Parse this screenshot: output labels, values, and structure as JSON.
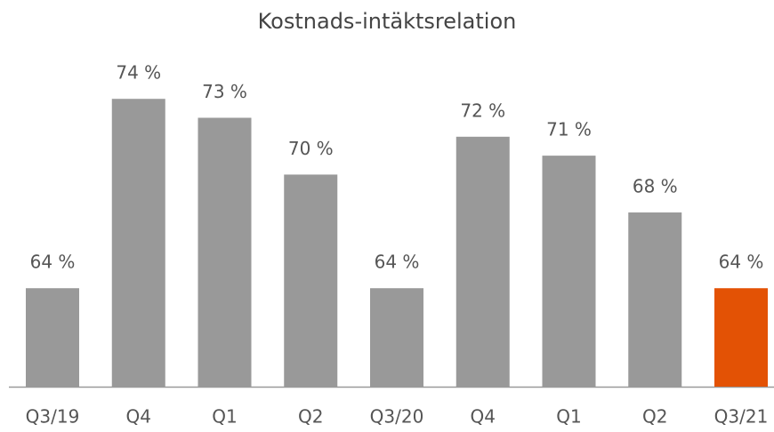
{
  "chart_data": {
    "type": "bar",
    "title": "Kostnads-intäktsrelation",
    "categories": [
      "Q3/19",
      "Q4",
      "Q1",
      "Q2",
      "Q3/20",
      "Q4",
      "Q1",
      "Q2",
      "Q3/21"
    ],
    "values": [
      64,
      74,
      73,
      70,
      64,
      72,
      71,
      68,
      64
    ],
    "value_labels": [
      "64 %",
      "74 %",
      "73 %",
      "70 %",
      "64 %",
      "72 %",
      "71 %",
      "68 %",
      "64 %"
    ],
    "colors": [
      "#999999",
      "#999999",
      "#999999",
      "#999999",
      "#999999",
      "#999999",
      "#999999",
      "#999999",
      "#e35205"
    ],
    "ylim": [
      58.8,
      76
    ]
  }
}
